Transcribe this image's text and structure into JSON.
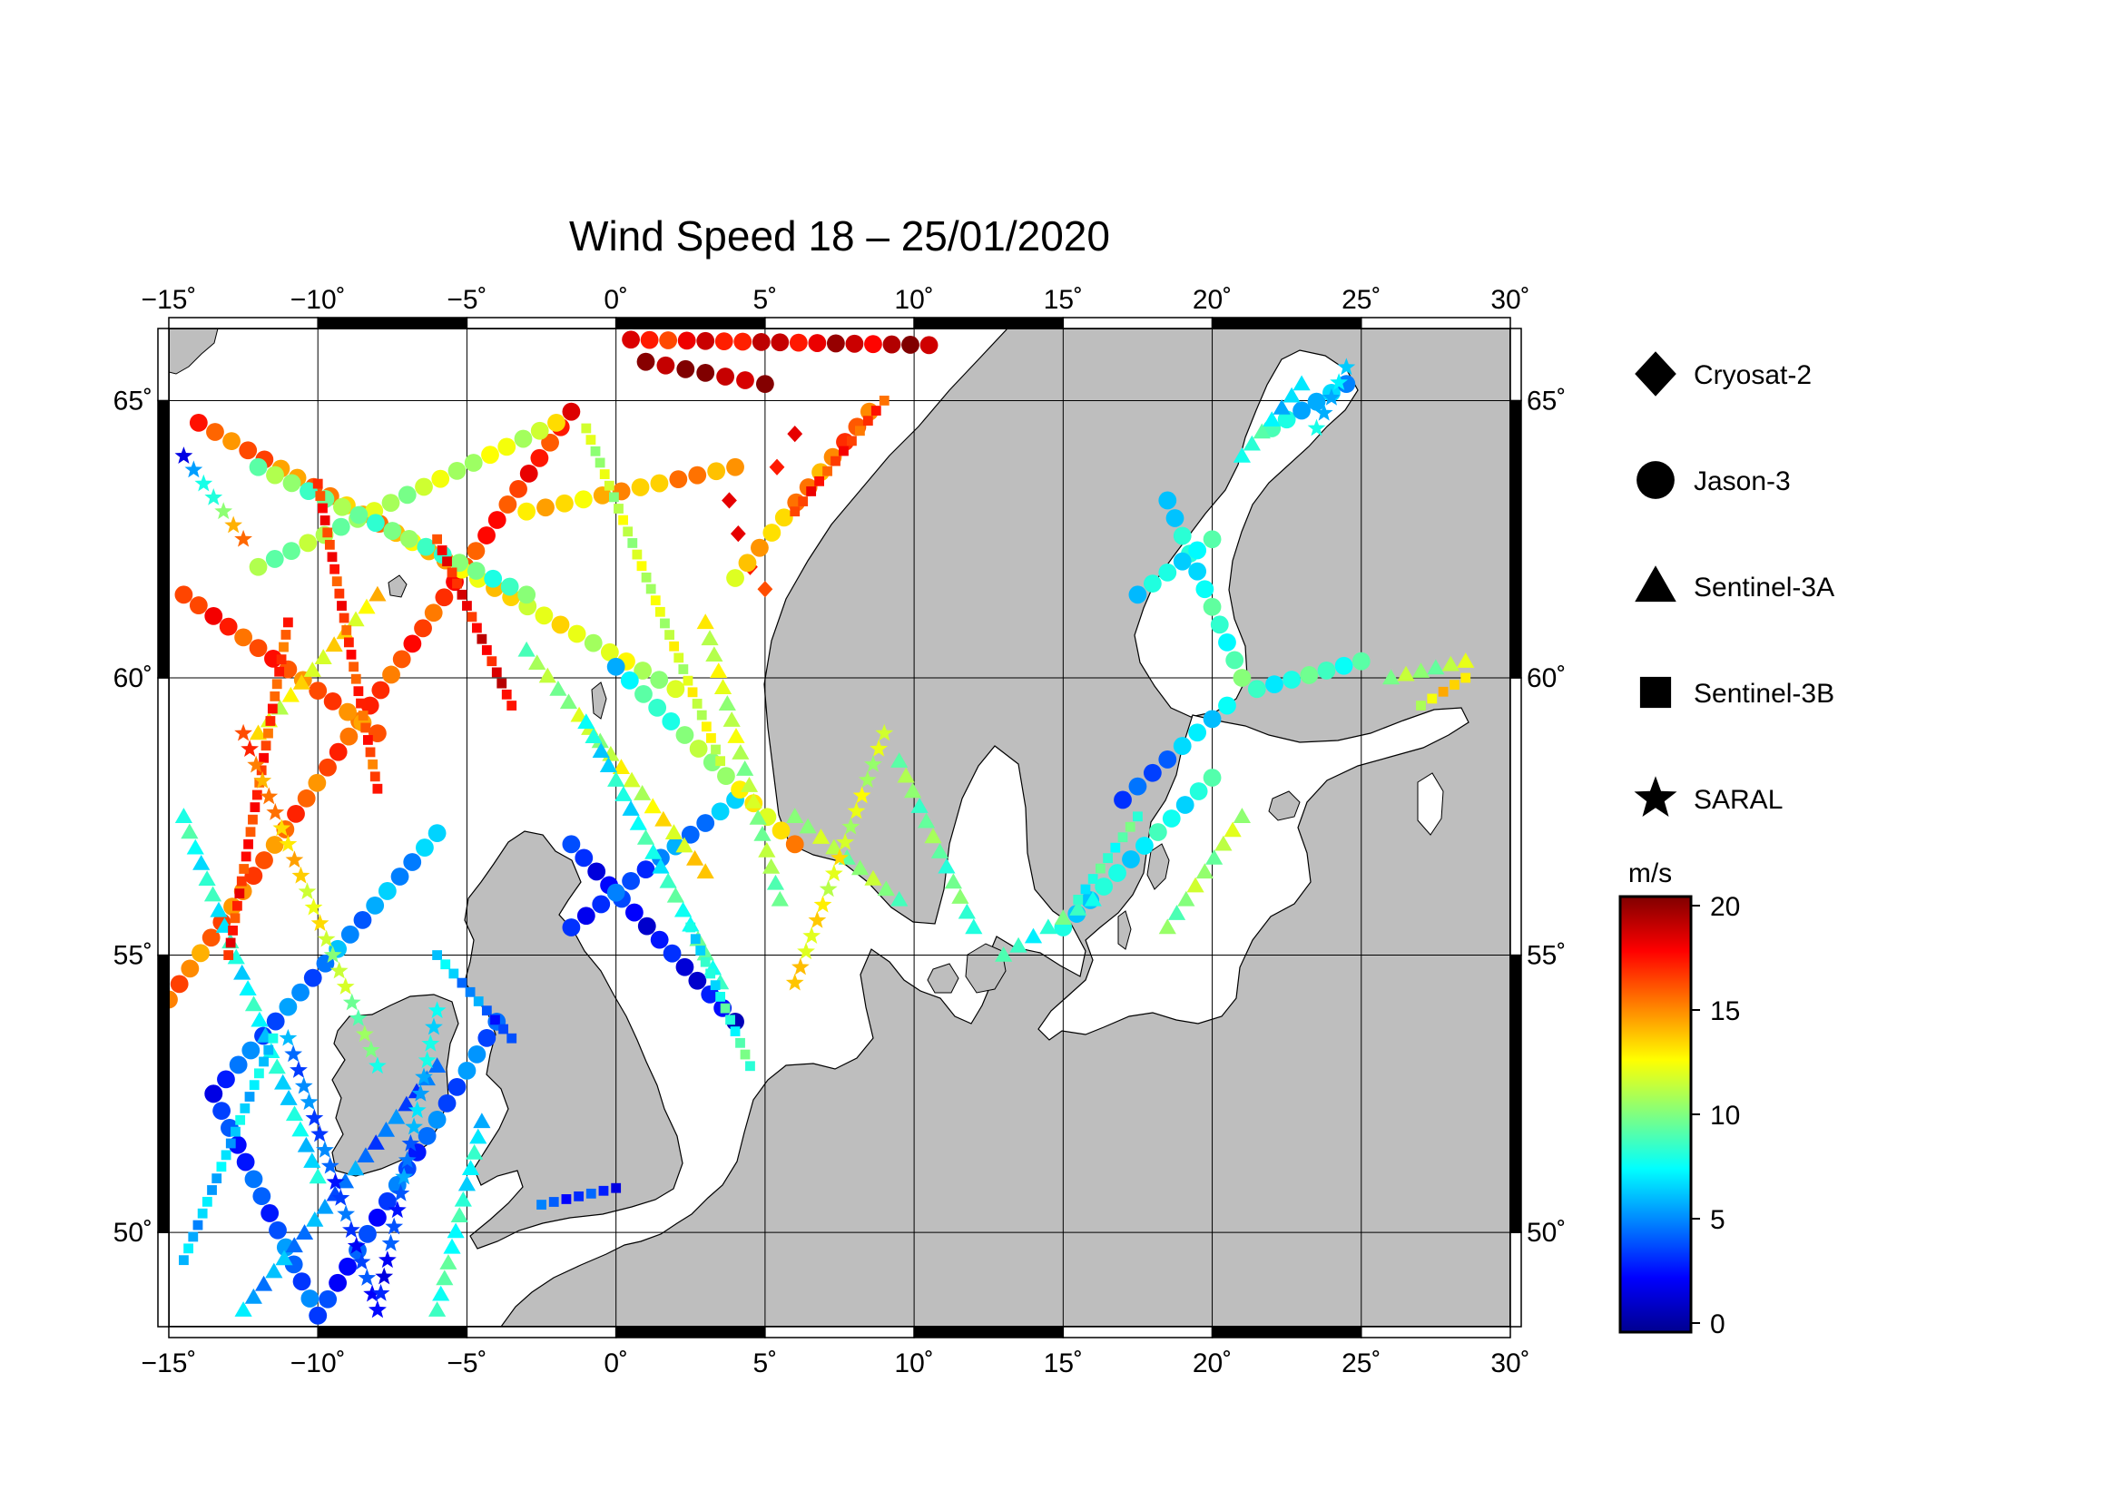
{
  "title": "Wind Speed 18 – 25/01/2020",
  "map": {
    "lon_range": [
      -15,
      30
    ],
    "lat_range": [
      48.3,
      66.3
    ],
    "projection": "lambert-conic-like",
    "land_color": "#bebebe",
    "sea_color": "#ffffff",
    "graticule": true,
    "frame": "black-white-striped"
  },
  "axes": {
    "lon_ticks": [
      "−15˚",
      "−10˚",
      "−5˚",
      "0˚",
      "5˚",
      "10˚",
      "15˚",
      "20˚",
      "25˚",
      "30˚"
    ],
    "lat_ticks": [
      "50˚",
      "55˚",
      "60˚",
      "65˚"
    ]
  },
  "legend": {
    "placement": "right",
    "items": [
      {
        "label": "Cryosat-2",
        "marker": "diamond"
      },
      {
        "label": "Jason-3",
        "marker": "circle"
      },
      {
        "label": "Sentinel-3A",
        "marker": "triangle"
      },
      {
        "label": "Sentinel-3B",
        "marker": "square"
      },
      {
        "label": "SARAL",
        "marker": "star"
      }
    ]
  },
  "colorbar": {
    "unit": "m/s",
    "ticks": [
      "0",
      "5",
      "10",
      "15",
      "20"
    ],
    "range": [
      0,
      20
    ],
    "colormap": [
      "#00008f",
      "#0000ff",
      "#0080ff",
      "#00ffff",
      "#80ff80",
      "#ffff00",
      "#ff8000",
      "#ff0000",
      "#800000"
    ]
  },
  "chart_data": {
    "type": "scatter",
    "variable": "wind speed",
    "units": "m/s",
    "series": [
      {
        "name": "Cryosat-2",
        "marker": "diamond",
        "points": [
          {
            "lon": 3.8,
            "lat": 63.2,
            "v": 18
          },
          {
            "lon": 4.1,
            "lat": 62.6,
            "v": 18
          },
          {
            "lon": 4.5,
            "lat": 62.0,
            "v": 17
          },
          {
            "lon": 5.0,
            "lat": 61.6,
            "v": 16
          },
          {
            "lon": 5.4,
            "lat": 63.8,
            "v": 17
          },
          {
            "lon": 6.0,
            "lat": 64.4,
            "v": 18
          }
        ]
      },
      {
        "name": "Jason-3",
        "marker": "circle",
        "tracks": [
          {
            "lon0": -15.0,
            "lat0": 54.2,
            "lon1": -1.5,
            "lat1": 64.8,
            "v0": 15,
            "v1": 17
          },
          {
            "lon0": -14.0,
            "lat0": 64.6,
            "lon1": 2.0,
            "lat1": 59.8,
            "v0": 16,
            "v1": 11
          },
          {
            "lon0": -13.5,
            "lat0": 52.5,
            "lon1": -6.0,
            "lat1": 57.2,
            "v0": 4,
            "v1": 6
          },
          {
            "lon0": -13.5,
            "lat0": 52.5,
            "lon1": -10.0,
            "lat1": 48.5,
            "v0": 3,
            "v1": 5
          },
          {
            "lon0": -10.0,
            "lat0": 48.5,
            "lon1": -4.0,
            "lat1": 53.8,
            "v0": 3,
            "v1": 5
          },
          {
            "lon0": -12.0,
            "lat0": 62.0,
            "lon1": -2.0,
            "lat1": 64.6,
            "v0": 10,
            "v1": 12
          },
          {
            "lon0": -14.5,
            "lat0": 61.5,
            "lon1": -8.0,
            "lat1": 59.0,
            "v0": 17,
            "v1": 15
          },
          {
            "lon0": -12.0,
            "lat0": 63.8,
            "lon1": -3.0,
            "lat1": 61.5,
            "v0": 10,
            "v1": 9
          },
          {
            "lon0": -1.5,
            "lat0": 57.0,
            "lon1": 4.0,
            "lat1": 53.8,
            "v0": 3,
            "v1": 2
          },
          {
            "lon0": -1.5,
            "lat0": 55.5,
            "lon1": 4.0,
            "lat1": 57.8,
            "v0": 3,
            "v1": 6
          },
          {
            "lon0": 0.0,
            "lat0": 60.2,
            "lon1": 6.0,
            "lat1": 57.0,
            "v0": 7,
            "v1": 14
          },
          {
            "lon0": -3.0,
            "lat0": 63.0,
            "lon1": 4.0,
            "lat1": 63.8,
            "v0": 13,
            "v1": 15
          },
          {
            "lon0": 0.5,
            "lat0": 66.1,
            "lon1": 10.5,
            "lat1": 66.0,
            "v0": 17,
            "v1": 19
          },
          {
            "lon0": 1.0,
            "lat0": 65.7,
            "lon1": 5.0,
            "lat1": 65.3,
            "v0": 20,
            "v1": 19
          },
          {
            "lon0": 4.0,
            "lat0": 61.8,
            "lon1": 8.5,
            "lat1": 64.8,
            "v0": 13,
            "v1": 16
          },
          {
            "lon0": 17.0,
            "lat0": 57.8,
            "lon1": 20.5,
            "lat1": 59.5,
            "v0": 3,
            "v1": 8
          },
          {
            "lon0": 15.0,
            "lat0": 55.5,
            "lon1": 20.0,
            "lat1": 58.2,
            "v0": 7,
            "v1": 8
          },
          {
            "lon0": 18.5,
            "lat0": 63.2,
            "lon1": 21.0,
            "lat1": 60.0,
            "v0": 7,
            "v1": 9
          },
          {
            "lon0": 17.5,
            "lat0": 61.5,
            "lon1": 20.0,
            "lat1": 62.5,
            "v0": 7,
            "v1": 8
          },
          {
            "lon0": 22.0,
            "lat0": 64.5,
            "lon1": 24.5,
            "lat1": 65.3,
            "v0": 8,
            "v1": 5
          },
          {
            "lon0": 21.5,
            "lat0": 59.8,
            "lon1": 25.0,
            "lat1": 60.3,
            "v0": 8,
            "v1": 9
          }
        ]
      },
      {
        "name": "Sentinel-3A",
        "marker": "triangle",
        "tracks": [
          {
            "lon0": -14.5,
            "lat0": 57.5,
            "lon1": -10.0,
            "lat1": 51.0,
            "v0": 8,
            "v1": 7
          },
          {
            "lon0": -12.5,
            "lat0": 48.6,
            "lon1": -6.0,
            "lat1": 53.0,
            "v0": 6,
            "v1": 4
          },
          {
            "lon0": -6.0,
            "lat0": 48.6,
            "lon1": -4.5,
            "lat1": 52.0,
            "v0": 9,
            "v1": 7
          },
          {
            "lon0": -3.0,
            "lat0": 60.5,
            "lon1": 3.0,
            "lat1": 56.5,
            "v0": 10,
            "v1": 13
          },
          {
            "lon0": -1.0,
            "lat0": 59.2,
            "lon1": 3.5,
            "lat1": 54.5,
            "v0": 7,
            "v1": 9
          },
          {
            "lon0": 3.0,
            "lat0": 61.0,
            "lon1": 5.5,
            "lat1": 56.0,
            "v0": 12,
            "v1": 10
          },
          {
            "lon0": 6.0,
            "lat0": 57.5,
            "lon1": 9.5,
            "lat1": 56.0,
            "v0": 11,
            "v1": 10
          },
          {
            "lon0": 9.5,
            "lat0": 58.5,
            "lon1": 12.0,
            "lat1": 55.5,
            "v0": 10,
            "v1": 9
          },
          {
            "lon0": 13.0,
            "lat0": 55.0,
            "lon1": 16.0,
            "lat1": 56.0,
            "v0": 8,
            "v1": 9
          },
          {
            "lon0": 18.5,
            "lat0": 55.5,
            "lon1": 21.0,
            "lat1": 57.5,
            "v0": 10,
            "v1": 11
          },
          {
            "lon0": 21.0,
            "lat0": 64.0,
            "lon1": 23.0,
            "lat1": 65.3,
            "v0": 9,
            "v1": 6
          },
          {
            "lon0": 26.0,
            "lat0": 60.0,
            "lon1": 28.5,
            "lat1": 60.3,
            "v0": 10,
            "v1": 11
          },
          {
            "lon0": -12.0,
            "lat0": 59.0,
            "lon1": -8.0,
            "lat1": 61.5,
            "v0": 12,
            "v1": 13
          }
        ]
      },
      {
        "name": "Sentinel-3B",
        "marker": "square",
        "tracks": [
          {
            "lon0": -14.5,
            "lat0": 49.5,
            "lon1": -11.5,
            "lat1": 53.5,
            "v0": 6,
            "v1": 7
          },
          {
            "lon0": -11.0,
            "lat0": 61.0,
            "lon1": -13.0,
            "lat1": 55.0,
            "v0": 16,
            "v1": 17
          },
          {
            "lon0": -10.0,
            "lat0": 63.5,
            "lon1": -8.0,
            "lat1": 58.0,
            "v0": 17,
            "v1": 16
          },
          {
            "lon0": -6.0,
            "lat0": 62.5,
            "lon1": -3.5,
            "lat1": 59.5,
            "v0": 17,
            "v1": 18
          },
          {
            "lon0": -1.0,
            "lat0": 64.5,
            "lon1": 3.5,
            "lat1": 58.5,
            "v0": 11,
            "v1": 12
          },
          {
            "lon0": 2.5,
            "lat0": 55.5,
            "lon1": 4.5,
            "lat1": 53.0,
            "v0": 7,
            "v1": 9
          },
          {
            "lon0": 6.0,
            "lat0": 63.0,
            "lon1": 9.0,
            "lat1": 65.0,
            "v0": 17,
            "v1": 16
          },
          {
            "lon0": -6.0,
            "lat0": 55.0,
            "lon1": -3.5,
            "lat1": 53.5,
            "v0": 7,
            "v1": 3
          },
          {
            "lon0": -2.5,
            "lat0": 50.5,
            "lon1": 0.0,
            "lat1": 50.8,
            "v0": 4,
            "v1": 3
          },
          {
            "lon0": 15.5,
            "lat0": 56.0,
            "lon1": 17.5,
            "lat1": 57.5,
            "v0": 8,
            "v1": 9
          },
          {
            "lon0": 27.0,
            "lat0": 59.5,
            "lon1": 28.5,
            "lat1": 60.0,
            "v0": 12,
            "v1": 14
          }
        ]
      },
      {
        "name": "SARAL",
        "marker": "star",
        "tracks": [
          {
            "lon0": -12.5,
            "lat0": 59.0,
            "lon1": -8.0,
            "lat1": 53.0,
            "v0": 16,
            "v1": 9
          },
          {
            "lon0": -11.0,
            "lat0": 53.5,
            "lon1": -8.0,
            "lat1": 48.6,
            "v0": 5,
            "v1": 3
          },
          {
            "lon0": -6.0,
            "lat0": 54.0,
            "lon1": -8.0,
            "lat1": 48.6,
            "v0": 8,
            "v1": 2
          },
          {
            "lon0": -14.5,
            "lat0": 64.0,
            "lon1": -12.5,
            "lat1": 62.5,
            "v0": 3,
            "v1": 15
          },
          {
            "lon0": 9.0,
            "lat0": 59.0,
            "lon1": 6.0,
            "lat1": 54.5,
            "v0": 11,
            "v1": 13
          },
          {
            "lon0": 23.5,
            "lat0": 64.5,
            "lon1": 24.5,
            "lat1": 65.6,
            "v0": 7,
            "v1": 6
          }
        ]
      }
    ]
  }
}
